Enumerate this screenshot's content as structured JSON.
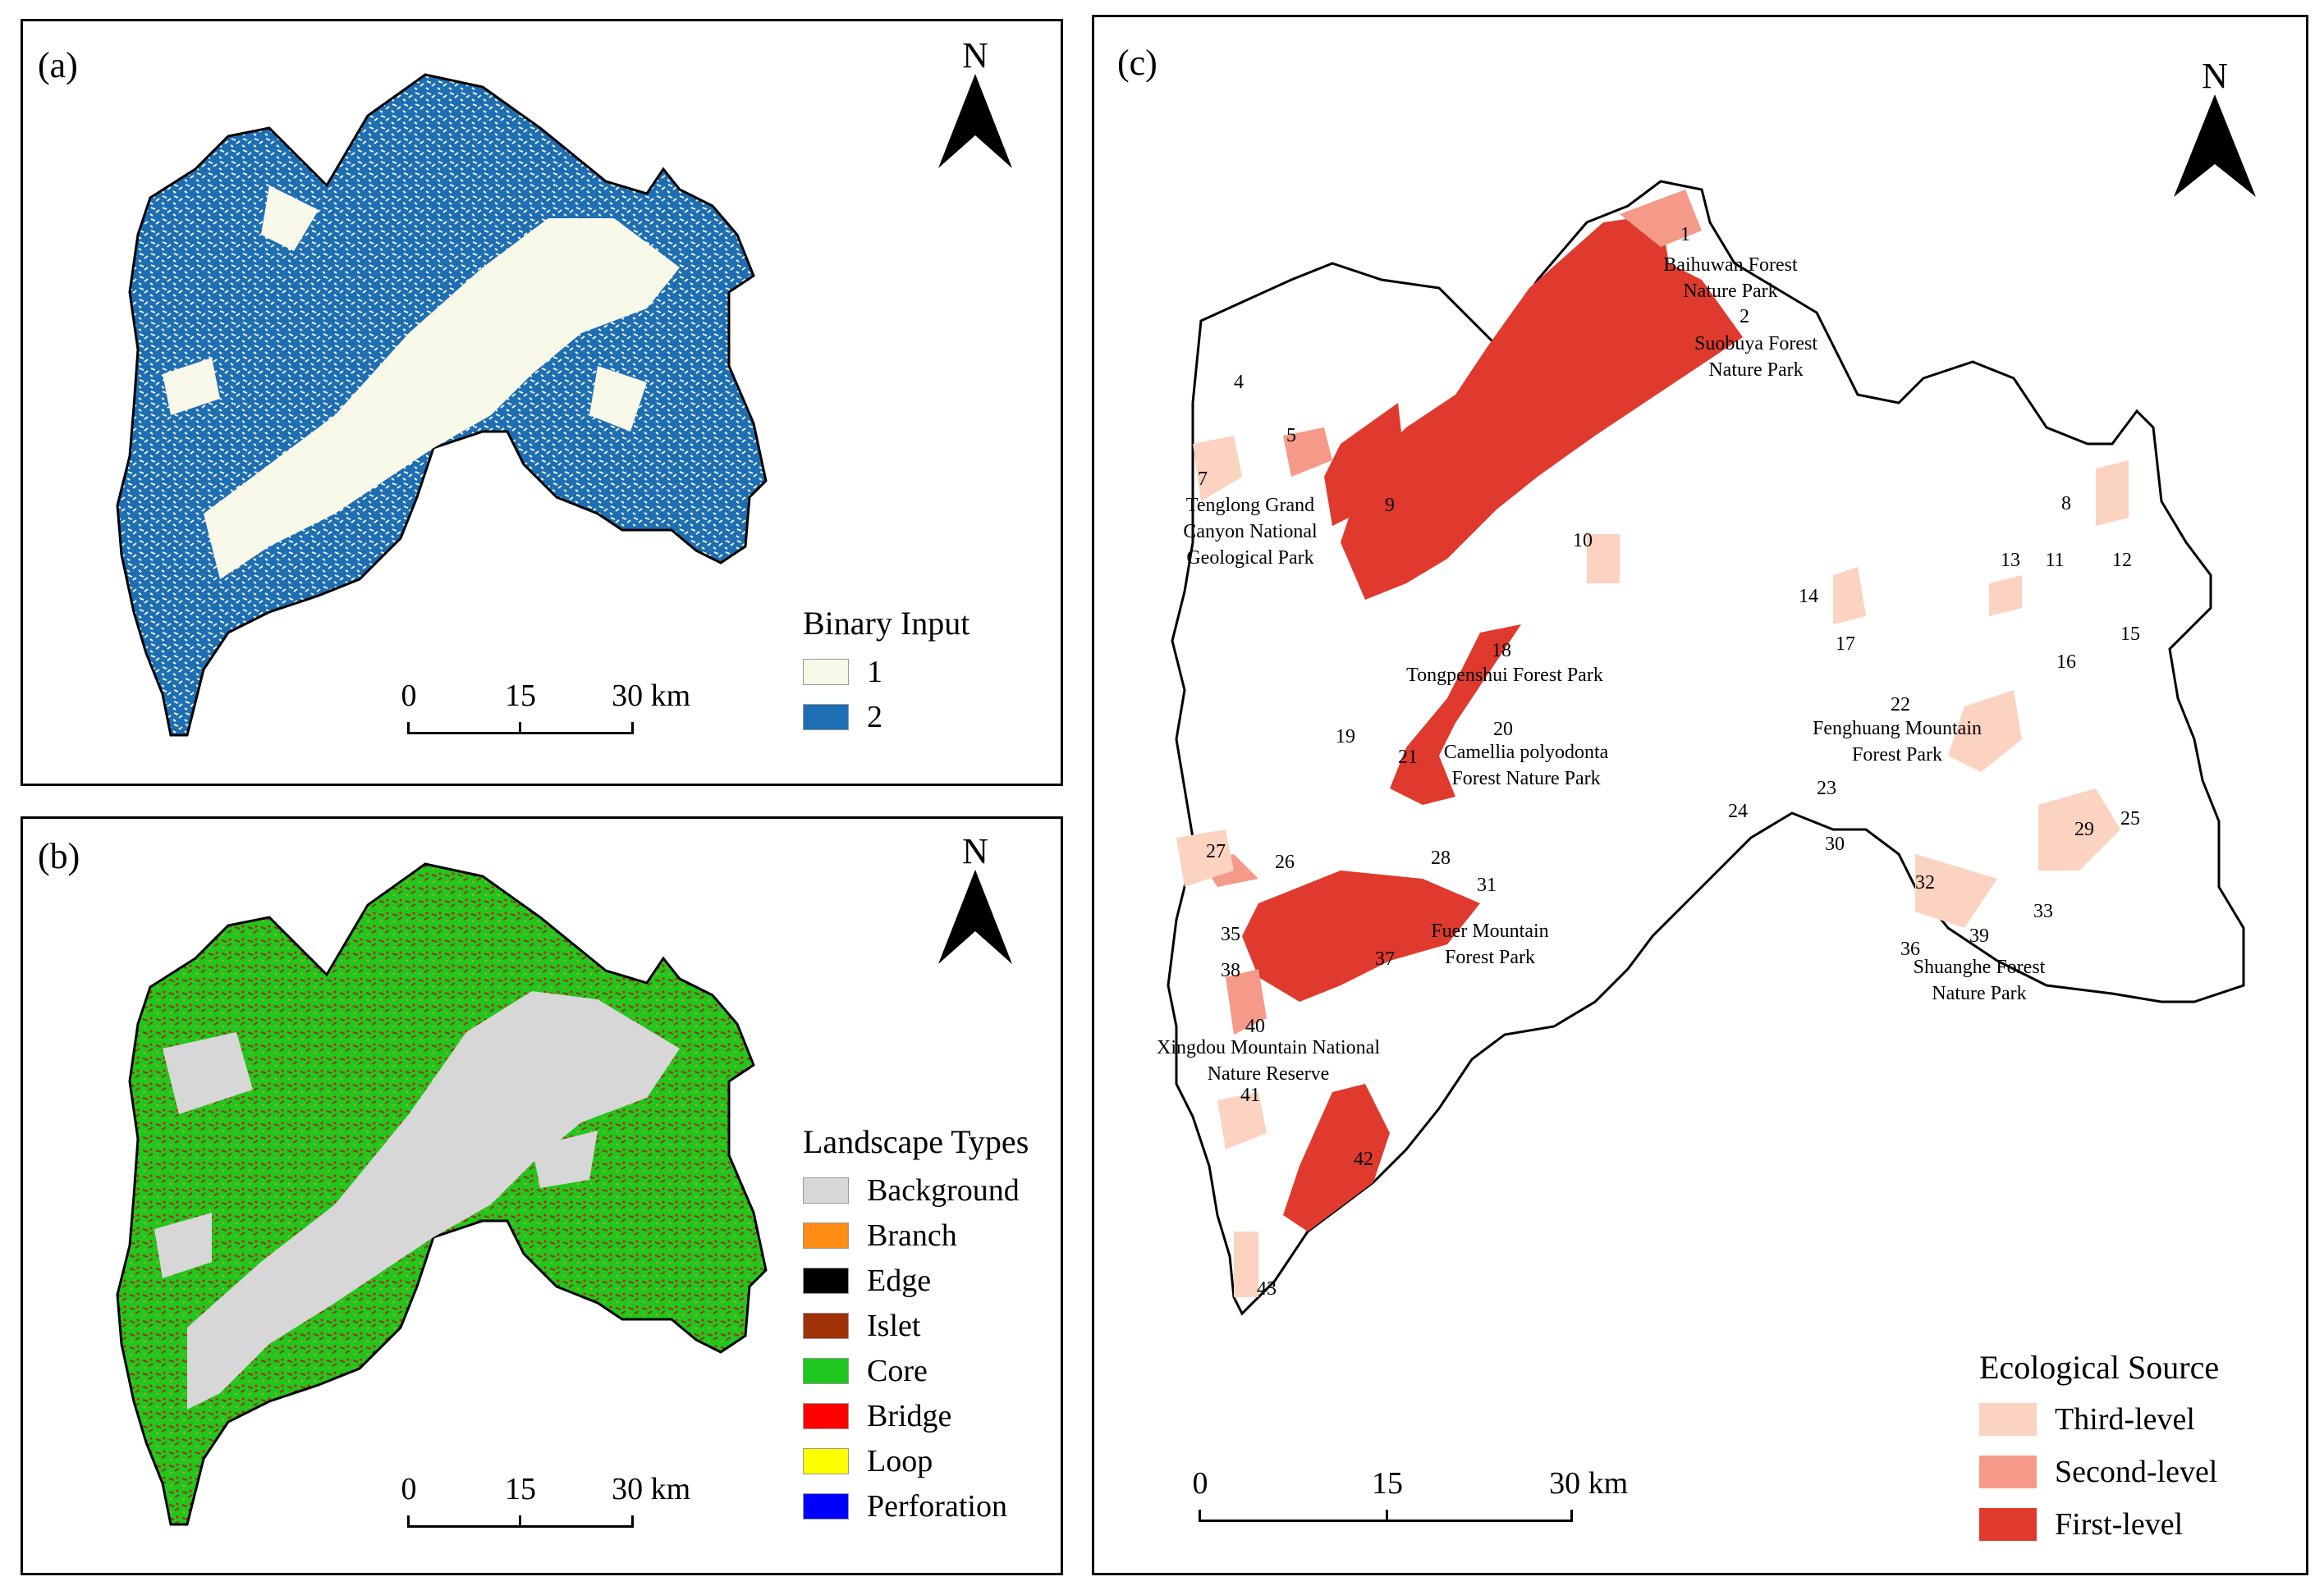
{
  "panels": {
    "a": {
      "label": "(a)",
      "north": "N",
      "legend": {
        "title": "Binary Input",
        "items": [
          {
            "label": "1",
            "color": "#f8f9e8"
          },
          {
            "label": "2",
            "color": "#1e6eb4"
          }
        ]
      },
      "scale": {
        "t0": "0",
        "t1": "15",
        "t2": "30 km"
      }
    },
    "b": {
      "label": "(b)",
      "north": "N",
      "legend": {
        "title": "Landscape Types",
        "items": [
          {
            "label": "Background",
            "color": "#d7d7d7"
          },
          {
            "label": "Branch",
            "color": "#ff8c14"
          },
          {
            "label": "Edge",
            "color": "#000000"
          },
          {
            "label": "Islet",
            "color": "#a0320a"
          },
          {
            "label": "Core",
            "color": "#1ec81e"
          },
          {
            "label": "Bridge",
            "color": "#ff0000"
          },
          {
            "label": "Loop",
            "color": "#ffff00"
          },
          {
            "label": "Perforation",
            "color": "#0000ff"
          }
        ]
      },
      "scale": {
        "t0": "0",
        "t1": "15",
        "t2": "30 km"
      }
    },
    "c": {
      "label": "(c)",
      "north": "N",
      "legend": {
        "title": "Ecological Source",
        "items": [
          {
            "label": "Third-level",
            "color": "#fcd2c0"
          },
          {
            "label": "Second-level",
            "color": "#f59a88"
          },
          {
            "label": "First-level",
            "color": "#e03a2e"
          }
        ]
      },
      "scale": {
        "t0": "0",
        "t1": "15",
        "t2": "30 km"
      },
      "source_numbers": [
        "1",
        "2",
        "4",
        "5",
        "7",
        "8",
        "9",
        "10",
        "11",
        "12",
        "13",
        "14",
        "15",
        "16",
        "17",
        "18",
        "19",
        "20",
        "21",
        "22",
        "23",
        "24",
        "25",
        "26",
        "27",
        "28",
        "29",
        "30",
        "31",
        "32",
        "33",
        "35",
        "36",
        "37",
        "38",
        "39",
        "40",
        "41",
        "42",
        "43"
      ],
      "place_labels": [
        "Baihuwan Forest Nature Park",
        "Suobuya Forest Nature Park",
        "Tenglong Grand Canyon National Geological Park",
        "Tongpenshui Forest Park",
        "Camellia polyodonta Forest Nature Park",
        "Fenghuang Mountain Forest Park",
        "Fuer Mountain Forest Park",
        "Shuanghe Forest Nature Park",
        "Xingdou Mountain National Nature Reserve"
      ]
    }
  }
}
